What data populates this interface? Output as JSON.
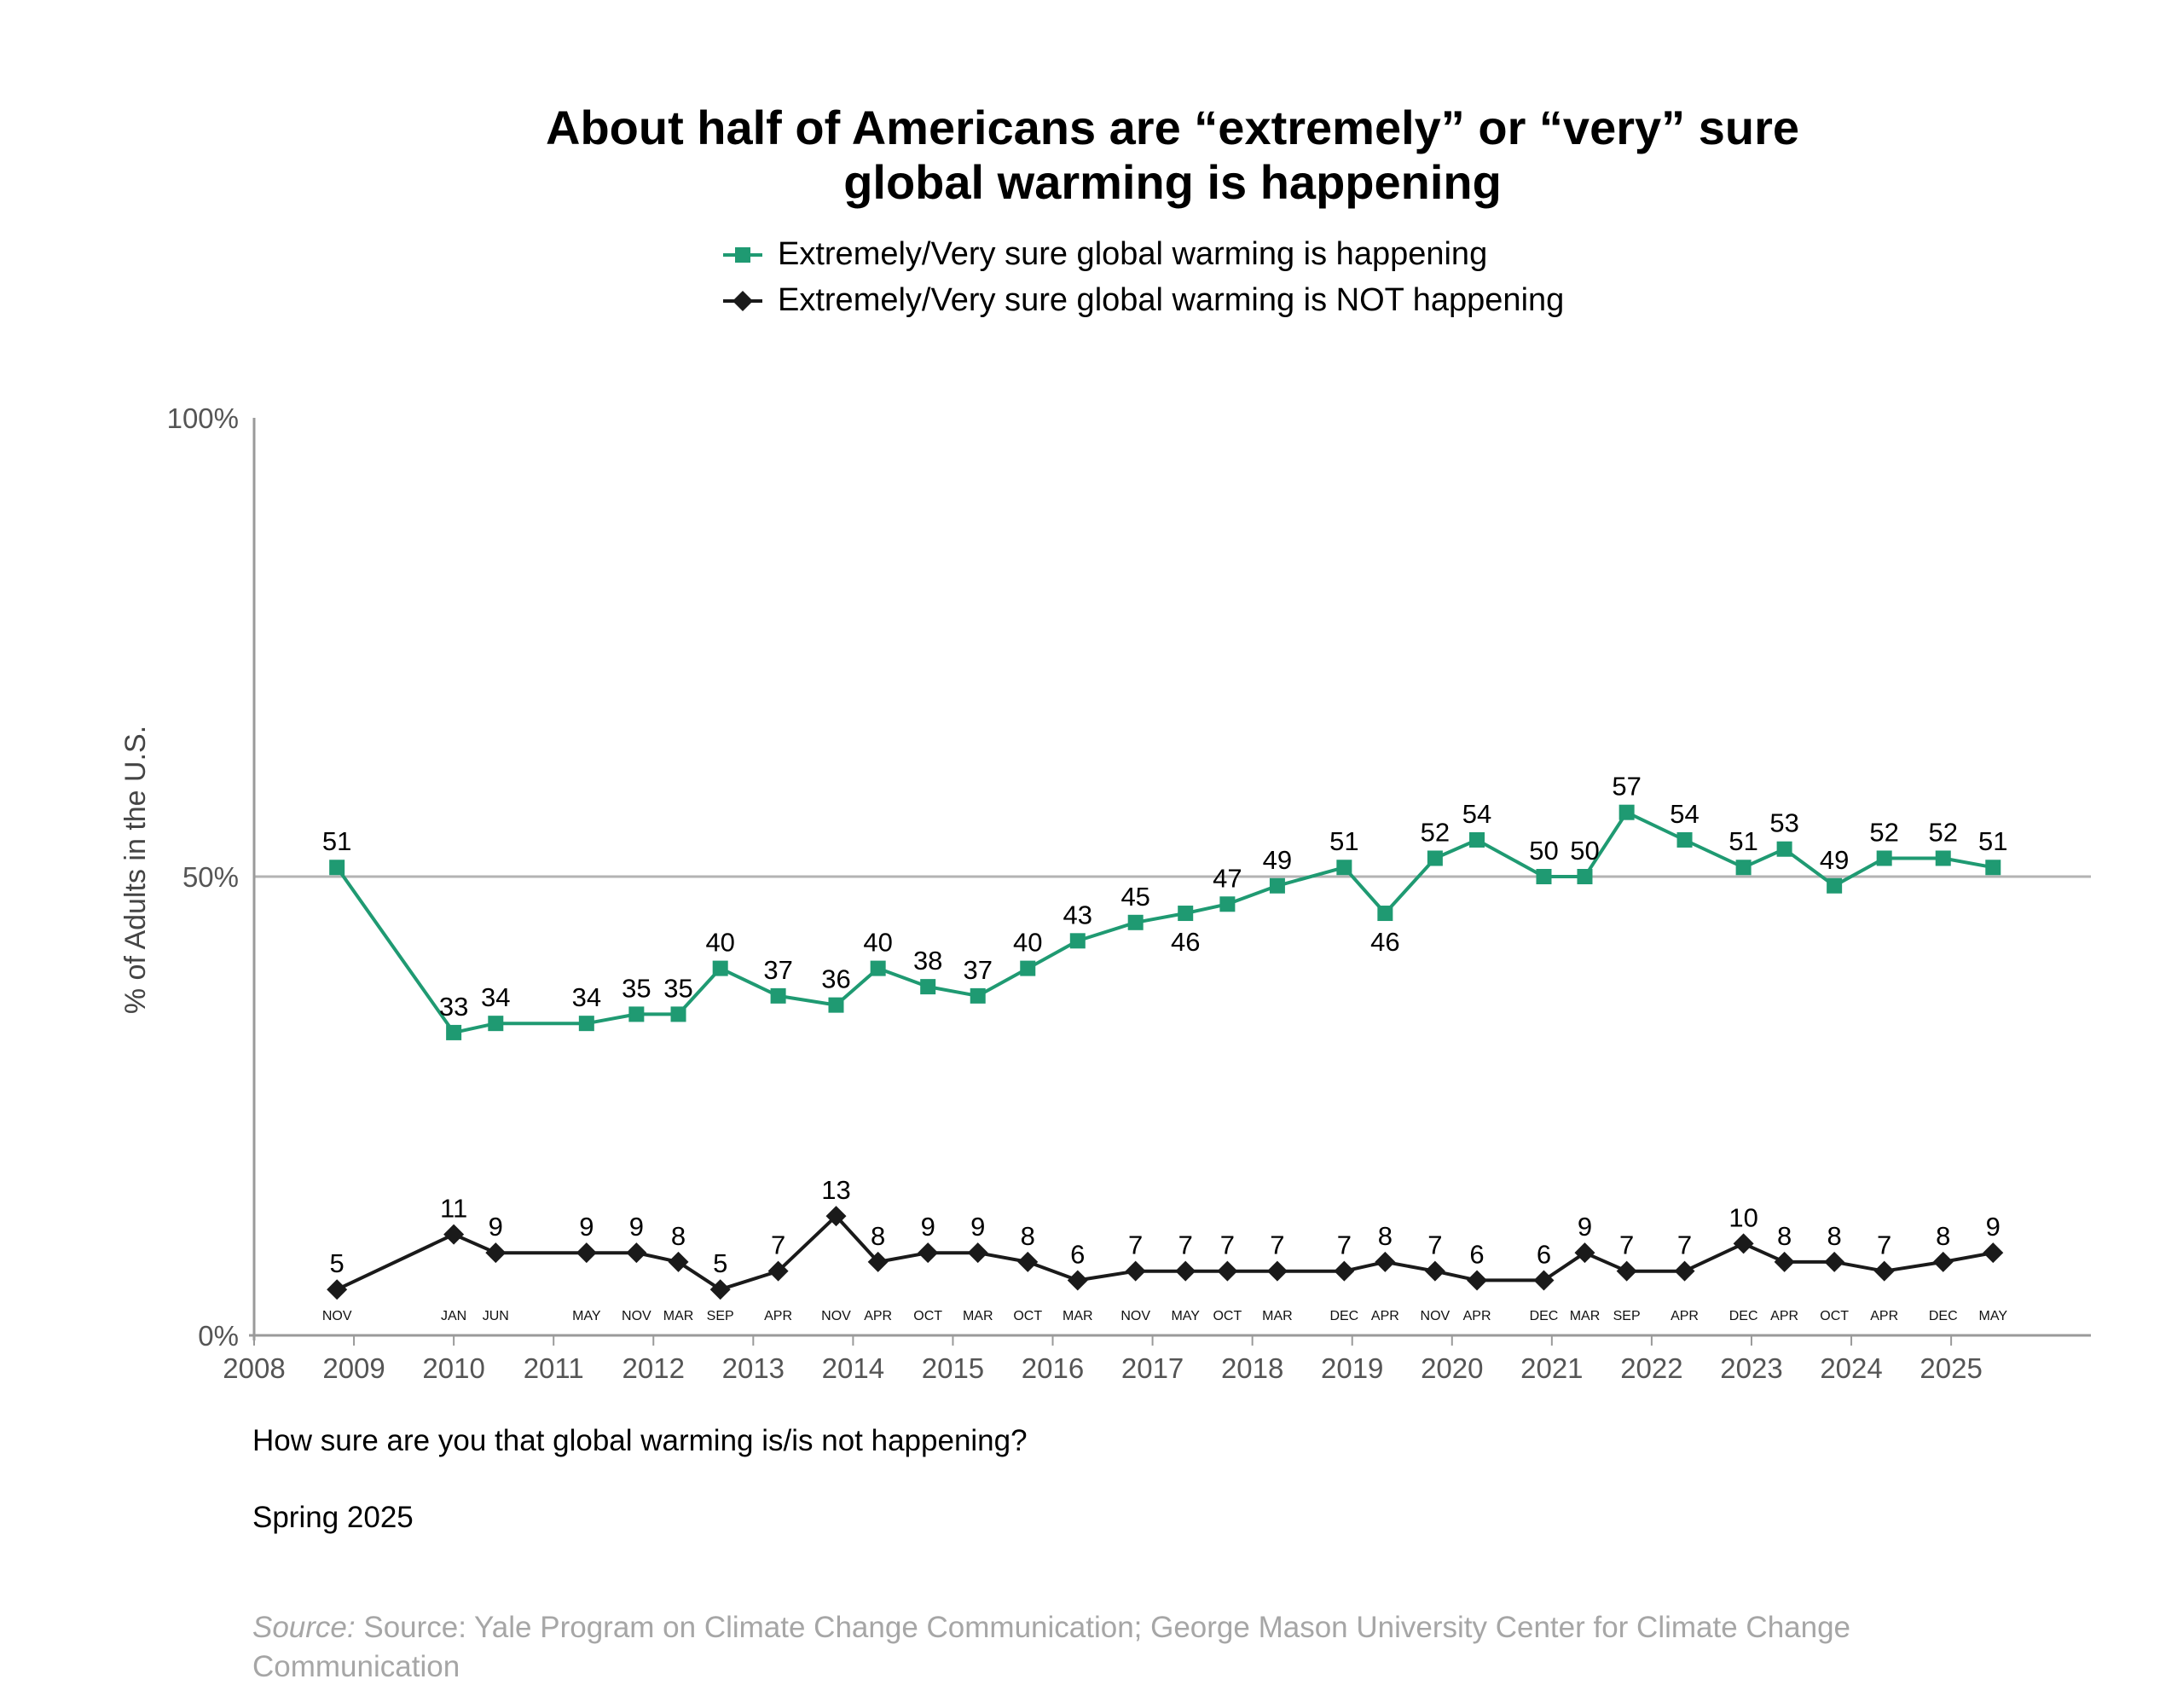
{
  "title_lines": [
    "About half of Americans are “extremely” or “very” sure",
    "global warming is happening"
  ],
  "legend": [
    {
      "label": "Extremely/Very sure global warming is happening",
      "color": "#1f9a72",
      "marker": "square"
    },
    {
      "label": "Extremely/Very sure global warming is NOT happening",
      "color": "#1a1a1a",
      "marker": "diamond"
    }
  ],
  "chart_data": {
    "type": "line",
    "title": "About half of Americans are “extremely” or “very” sure global warming is happening",
    "xlabel": "",
    "ylabel": "% of Adults in the U.S.",
    "xlim": [
      2008,
      2026.4
    ],
    "ylim": [
      0,
      100
    ],
    "y_ticks": [
      "0%",
      "50%",
      "100%"
    ],
    "year_ticks": [
      "2008",
      "2009",
      "2010",
      "2011",
      "2012",
      "2013",
      "2014",
      "2015",
      "2016",
      "2017",
      "2018",
      "2019",
      "2020",
      "2021",
      "2022",
      "2023",
      "2024",
      "2025"
    ],
    "reference_line": 50,
    "grid": false,
    "legend_position": "top",
    "points": [
      {
        "month": "NOV",
        "x": 2008.83,
        "happening": 51,
        "not_happening": 5
      },
      {
        "month": "JAN",
        "x": 2010.0,
        "happening": 33,
        "not_happening": 11
      },
      {
        "month": "JUN",
        "x": 2010.42,
        "happening": 34,
        "not_happening": 9
      },
      {
        "month": "MAY",
        "x": 2011.33,
        "happening": 34,
        "not_happening": 9
      },
      {
        "month": "NOV",
        "x": 2011.83,
        "happening": 35,
        "not_happening": 9
      },
      {
        "month": "MAR",
        "x": 2012.25,
        "happening": 35,
        "not_happening": 8
      },
      {
        "month": "SEP",
        "x": 2012.67,
        "happening": 40,
        "not_happening": 5
      },
      {
        "month": "APR",
        "x": 2013.25,
        "happening": 37,
        "not_happening": 7
      },
      {
        "month": "NOV",
        "x": 2013.83,
        "happening": 36,
        "not_happening": 13
      },
      {
        "month": "APR",
        "x": 2014.25,
        "happening": 40,
        "not_happening": 8
      },
      {
        "month": "OCT",
        "x": 2014.75,
        "happening": 38,
        "not_happening": 9
      },
      {
        "month": "MAR",
        "x": 2015.25,
        "happening": 37,
        "not_happening": 9
      },
      {
        "month": "OCT",
        "x": 2015.75,
        "happening": 40,
        "not_happening": 8
      },
      {
        "month": "MAR",
        "x": 2016.25,
        "happening": 43,
        "not_happening": 6
      },
      {
        "month": "NOV",
        "x": 2016.83,
        "happening": 45,
        "not_happening": 7
      },
      {
        "month": "MAY",
        "x": 2017.33,
        "happening": 46,
        "not_happening": 7
      },
      {
        "month": "OCT",
        "x": 2017.75,
        "happening": 47,
        "not_happening": 7
      },
      {
        "month": "MAR",
        "x": 2018.25,
        "happening": 49,
        "not_happening": 7
      },
      {
        "month": "DEC",
        "x": 2018.92,
        "happening": 51,
        "not_happening": 7
      },
      {
        "month": "APR",
        "x": 2019.33,
        "happening": 46,
        "not_happening": 8
      },
      {
        "month": "NOV",
        "x": 2019.83,
        "happening": 52,
        "not_happening": 7
      },
      {
        "month": "APR",
        "x": 2020.25,
        "happening": 54,
        "not_happening": 6
      },
      {
        "month": "DEC",
        "x": 2020.92,
        "happening": 50,
        "not_happening": 6
      },
      {
        "month": "MAR",
        "x": 2021.33,
        "happening": 50,
        "not_happening": 9
      },
      {
        "month": "SEP",
        "x": 2021.75,
        "happening": 57,
        "not_happening": 7
      },
      {
        "month": "APR",
        "x": 2022.33,
        "happening": 54,
        "not_happening": 7
      },
      {
        "month": "DEC",
        "x": 2022.92,
        "happening": 51,
        "not_happening": 10
      },
      {
        "month": "APR",
        "x": 2023.33,
        "happening": 53,
        "not_happening": 8
      },
      {
        "month": "OCT",
        "x": 2023.83,
        "happening": 49,
        "not_happening": 8
      },
      {
        "month": "APR",
        "x": 2024.33,
        "happening": 52,
        "not_happening": 7
      },
      {
        "month": "DEC",
        "x": 2024.92,
        "happening": 52,
        "not_happening": 8
      },
      {
        "month": "MAY",
        "x": 2025.42,
        "happening": 51,
        "not_happening": 9
      }
    ]
  },
  "question": "How sure are you that global warming is/is not happening?",
  "season": "Spring 2025",
  "source_prefix": "Source:",
  "source_text": " Source: Yale Program on Climate Change Communication; George Mason University Center for Climate Change Communication"
}
